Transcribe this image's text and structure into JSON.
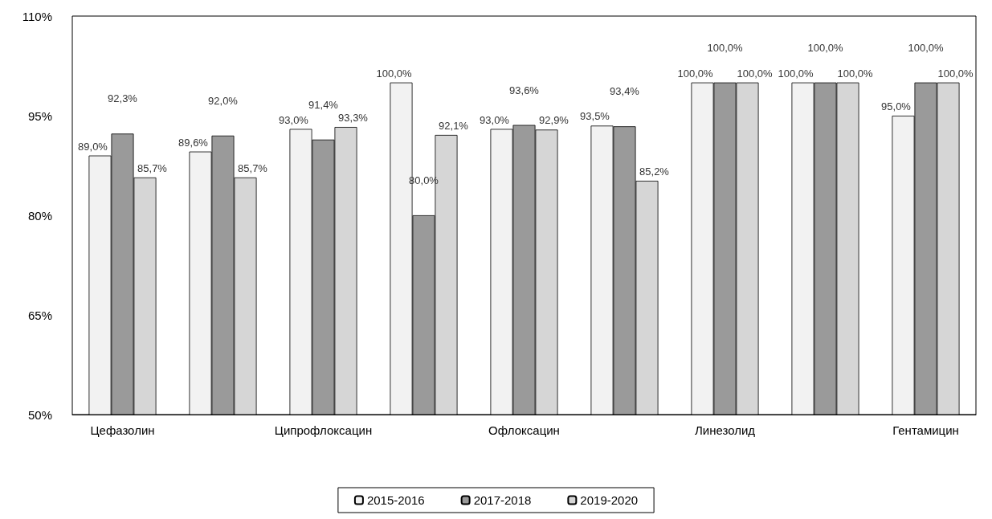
{
  "chart_data": {
    "type": "bar",
    "categories": [
      "Цефазолин",
      null,
      "Ципрофлоксацин",
      null,
      "Офлоксацин",
      null,
      "Линезолид",
      null,
      "Гентамицин"
    ],
    "series": [
      {
        "name": "2015-2016",
        "color": "#f2f2f2",
        "values": [
          89.0,
          89.6,
          93.0,
          100.0,
          93.0,
          93.5,
          100.0,
          100.0,
          95.0
        ],
        "value_labels": [
          "89,0%",
          "89,6%",
          "93,0%",
          "100,0%",
          "93,0%",
          "93,5%",
          "100,0%",
          "100,0%",
          "95,0%"
        ]
      },
      {
        "name": "2017-2018",
        "color": "#9a9a9a",
        "values": [
          92.3,
          92.0,
          91.4,
          80.0,
          93.6,
          93.4,
          100.0,
          100.0,
          100.0
        ],
        "value_labels": [
          "92,3%",
          "92,0%",
          "91,4%",
          "80,0%",
          "93,6%",
          "93,4%",
          "100,0%",
          "100,0%",
          "100,0%"
        ]
      },
      {
        "name": "2019-2020",
        "color": "#d6d6d6",
        "values": [
          85.7,
          85.7,
          93.3,
          92.1,
          92.9,
          85.2,
          100.0,
          100.0,
          100.0
        ],
        "value_labels": [
          "85,7%",
          "85,7%",
          "93,3%",
          "92,1%",
          "92,9%",
          "85,2%",
          "100,0%",
          "100,0%",
          "100,0%"
        ]
      }
    ],
    "ylim": [
      50,
      110
    ],
    "yticks": [
      {
        "value": 50,
        "label": "50%"
      },
      {
        "value": 65,
        "label": "65%"
      },
      {
        "value": 80,
        "label": "80%"
      },
      {
        "value": 95,
        "label": "95%"
      },
      {
        "value": 110,
        "label": "110%"
      }
    ],
    "grid": false,
    "legend": "bottom"
  }
}
